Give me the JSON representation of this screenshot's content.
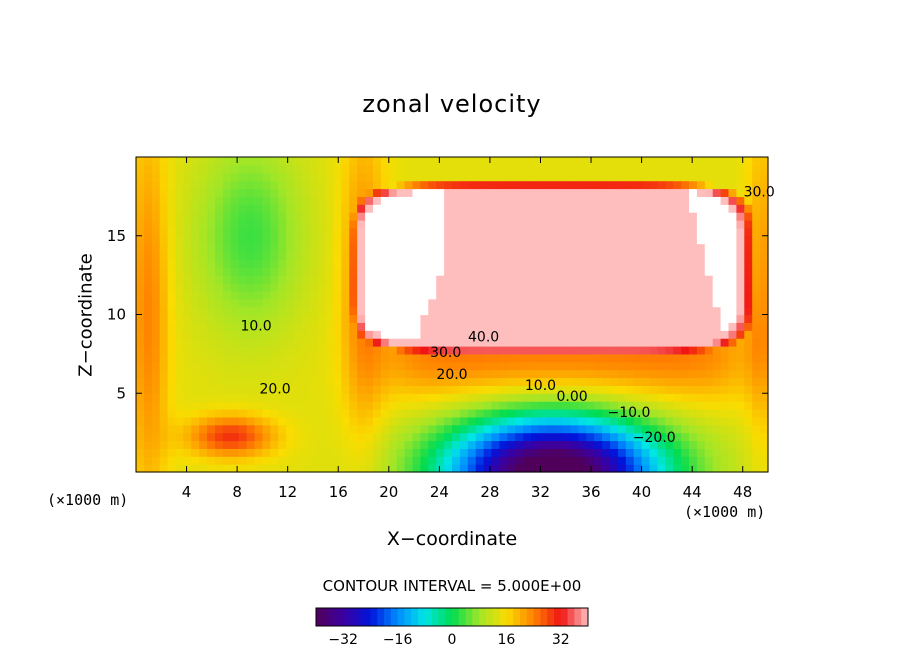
{
  "chart_data": {
    "type": "heatmap",
    "title": "zonal velocity",
    "xlabel": "X−coordinate",
    "ylabel": "Z−coordinate",
    "x_unit_left": "(×1000 m)",
    "x_unit_right": "(×1000 m)",
    "xlim": [
      0,
      50
    ],
    "ylim": [
      0,
      20
    ],
    "x_ticks": [
      4,
      8,
      12,
      16,
      20,
      24,
      28,
      32,
      36,
      40,
      44,
      48
    ],
    "y_ticks": [
      5,
      10,
      15
    ],
    "contour_interval_text": "CONTOUR INTERVAL = 5.000E+00",
    "colorbar": {
      "range": [
        -40,
        40
      ],
      "ticks": [
        -32,
        -16,
        0,
        16,
        32
      ],
      "tick_labels": [
        "−32",
        "−16",
        "0",
        "16",
        "32"
      ]
    },
    "contour_labels": [
      {
        "text": "10.0",
        "x": 9.5,
        "y": 9.0
      },
      {
        "text": "20.0",
        "x": 11.0,
        "y": 5.0
      },
      {
        "text": "40.0",
        "x": 27.5,
        "y": 8.3
      },
      {
        "text": "30.0",
        "x": 24.5,
        "y": 7.3
      },
      {
        "text": "20.0",
        "x": 25.0,
        "y": 5.9
      },
      {
        "text": "10.0",
        "x": 32.0,
        "y": 5.2
      },
      {
        "text": "0.00",
        "x": 34.5,
        "y": 4.5
      },
      {
        "text": "−10.0",
        "x": 39.0,
        "y": 3.5
      },
      {
        "text": "−20.0",
        "x": 41.0,
        "y": 1.9
      },
      {
        "text": "30.0",
        "x": 49.3,
        "y": 17.5
      }
    ],
    "features": [
      {
        "kind": "jet_core",
        "x": 33,
        "y": 13,
        "value": 45
      },
      {
        "kind": "jet_band",
        "x_range": [
          20,
          48
        ],
        "y": 7.5,
        "value": 25
      },
      {
        "kind": "return_flow_min",
        "x": 33,
        "y": 0,
        "value": -38
      },
      {
        "kind": "surface_max",
        "x": 7.5,
        "y": 2.3,
        "value": 30
      },
      {
        "kind": "interior_min",
        "x": 9,
        "y": 15,
        "value": 3
      }
    ]
  }
}
